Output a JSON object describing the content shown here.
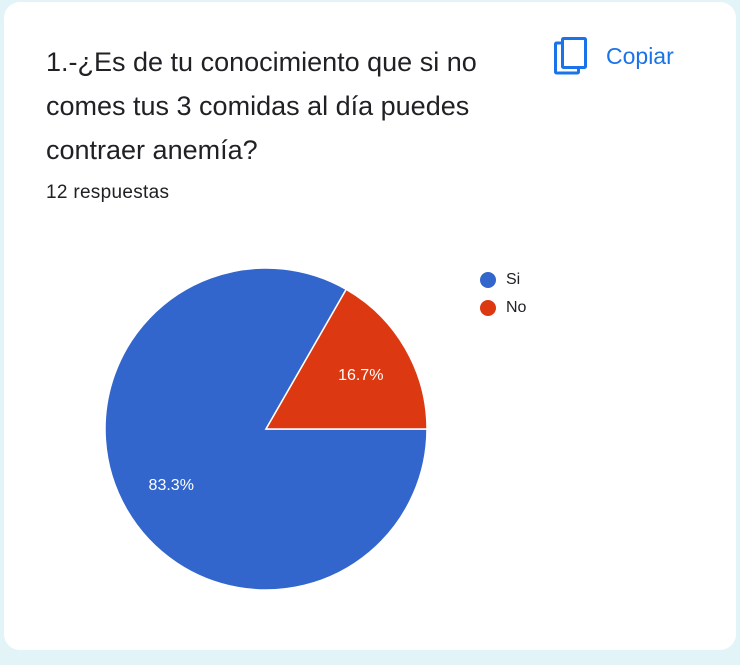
{
  "card": {
    "question": "1.-¿Es de tu conocimiento que si no comes tus 3 comidas al día puedes contraer anemía?",
    "copy_label": "Copiar",
    "copy_icon": "copy-icon",
    "responses": "12 respuestas"
  },
  "colors": {
    "si": "#3366cc",
    "no": "#dc3912",
    "accent": "#1a73e8"
  },
  "chart_data": {
    "type": "pie",
    "slices": [
      {
        "name": "Si",
        "value": 83.3,
        "label": "83.3%",
        "color": "#3366cc"
      },
      {
        "name": "No",
        "value": 16.7,
        "label": "16.7%",
        "color": "#dc3912"
      }
    ],
    "legend": "right"
  }
}
